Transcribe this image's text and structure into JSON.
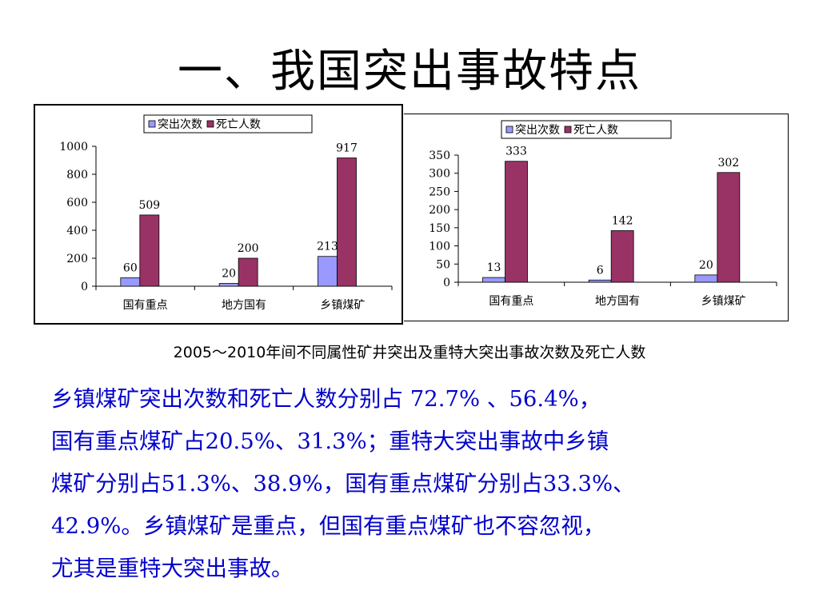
{
  "slide": {
    "title": "一、我国突出事故特点",
    "caption": "2005～2010年间不同属性矿井突出及重特大突出事故次数及死亡人数",
    "body_lines": [
      "乡镇煤矿突出次数和死亡人数分别占 72.7% 、56.4%，",
      "国有重点煤矿占20.5%、31.3%；重特大突出事故中乡镇",
      "煤矿分别占51.3%、38.9%，国有重点煤矿分别占33.3%、",
      "42.9%。乡镇煤矿是重点，但国有重点煤矿也不容忽视，",
      "尤其是重特大突出事故。"
    ]
  },
  "colors": {
    "series1": "#9999ff",
    "series2": "#993366",
    "body_text": "#0000cc"
  },
  "chart_data": [
    {
      "type": "bar",
      "categories": [
        "国有重点",
        "地方国有",
        "乡镇煤矿"
      ],
      "series": [
        {
          "name": "突出次数",
          "values": [
            60,
            20,
            213
          ]
        },
        {
          "name": "死亡人数",
          "values": [
            509,
            200,
            917
          ]
        }
      ],
      "ylim": [
        0,
        1000
      ],
      "yticks": [
        0,
        200,
        400,
        600,
        800,
        1000
      ],
      "legend": "top",
      "grid": false
    },
    {
      "type": "bar",
      "categories": [
        "国有重点",
        "地方国有",
        "乡镇煤矿"
      ],
      "series": [
        {
          "name": "突出次数",
          "values": [
            13,
            6,
            20
          ]
        },
        {
          "name": "死亡人数",
          "values": [
            333,
            142,
            302
          ]
        }
      ],
      "ylim": [
        0,
        350
      ],
      "yticks": [
        0,
        50,
        100,
        150,
        200,
        250,
        300,
        350
      ],
      "legend": "top",
      "grid": false
    }
  ]
}
